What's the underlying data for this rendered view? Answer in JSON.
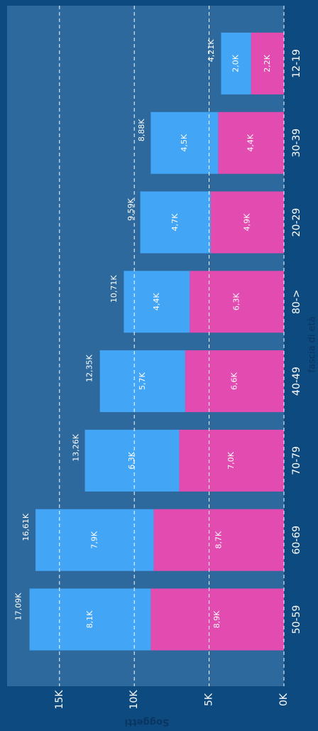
{
  "chart_data": {
    "type": "bar",
    "stacked": true,
    "x_label": "fascia di età",
    "y_label": "Soggetti",
    "categories": [
      "50-59",
      "60-69",
      "70-79",
      "40-49",
      "80->",
      "20-29",
      "30-39",
      "12-19"
    ],
    "series": [
      {
        "color": "#e24bb0",
        "values": [
          8900,
          8700,
          7000,
          6600,
          6300,
          4900,
          4400,
          2200
        ],
        "value_labels": [
          "8,9K",
          "8,7K",
          "7,0K",
          "6,6K",
          "6,3K",
          "4,9K",
          "4,4K",
          "2,2K"
        ]
      },
      {
        "color": "#42a5f5",
        "values": [
          8100,
          7900,
          6300,
          5700,
          4400,
          4700,
          4500,
          2000
        ],
        "value_labels": [
          "8,1K",
          "7,9K",
          "6,3K",
          "5,7K",
          "4,4K",
          "4,7K",
          "4,5K",
          "2,0K"
        ]
      }
    ],
    "totals": [
      17090,
      16610,
      13260,
      12350,
      10710,
      9590,
      8880,
      4210
    ],
    "total_labels": [
      "17,09K",
      "16,61K",
      "13,26K",
      "12,35K",
      "10,71K",
      "9,59K",
      "8,88K",
      "4,21K"
    ],
    "ylim": [
      0,
      18500
    ],
    "yticks": [
      {
        "value": 0,
        "label": "0K"
      },
      {
        "value": 5000,
        "label": "5K"
      },
      {
        "value": 10000,
        "label": "10K"
      },
      {
        "value": 15000,
        "label": "15K"
      }
    ],
    "grid": true
  }
}
